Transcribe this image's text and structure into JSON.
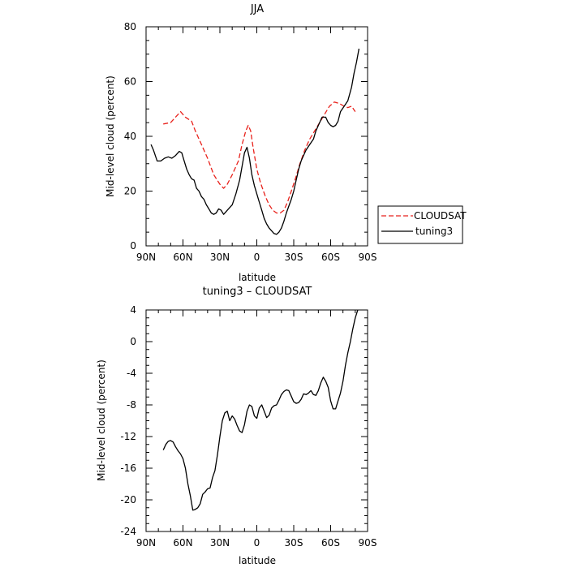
{
  "chart_data": [
    {
      "type": "line",
      "title": "JJA",
      "xlabel": "latitude",
      "ylabel": "Mid-level cloud (percent)",
      "xlim": [
        90,
        -90
      ],
      "ylim": [
        0,
        80
      ],
      "x_ticks": [
        90,
        60,
        30,
        0,
        -30,
        -60,
        -90
      ],
      "x_tick_labels": [
        "90N",
        "60N",
        "30N",
        "0",
        "30S",
        "60S",
        "90S"
      ],
      "y_ticks": [
        0,
        20,
        40,
        60,
        80
      ],
      "y_tick_labels": [
        "0",
        "20",
        "40",
        "60",
        "80"
      ],
      "legend_position": "right",
      "series": [
        {
          "name": "CLOUDSAT",
          "color": "#e8221c",
          "dash": "dashed",
          "points": [
            [
              76,
              44.5
            ],
            [
              70,
              45
            ],
            [
              65,
              47.5
            ],
            [
              62,
              49
            ],
            [
              58,
              47
            ],
            [
              53,
              45.5
            ],
            [
              50,
              42
            ],
            [
              45,
              37
            ],
            [
              40,
              32
            ],
            [
              35,
              26
            ],
            [
              30,
              22.5
            ],
            [
              27,
              21
            ],
            [
              24,
              22.5
            ],
            [
              20,
              26
            ],
            [
              15,
              31
            ],
            [
              12,
              37
            ],
            [
              9,
              42
            ],
            [
              7,
              44
            ],
            [
              5,
              42
            ],
            [
              3,
              36
            ],
            [
              0,
              28
            ],
            [
              -3,
              23
            ],
            [
              -7,
              18
            ],
            [
              -10,
              15
            ],
            [
              -13,
              13
            ],
            [
              -16,
              12
            ],
            [
              -19,
              12
            ],
            [
              -22,
              13
            ],
            [
              -25,
              16
            ],
            [
              -28,
              20
            ],
            [
              -31,
              24
            ],
            [
              -35,
              30
            ],
            [
              -39,
              35
            ],
            [
              -43,
              39
            ],
            [
              -47,
              42
            ],
            [
              -51,
              45
            ],
            [
              -55,
              48
            ],
            [
              -59,
              51
            ],
            [
              -63,
              52.5
            ],
            [
              -67,
              52
            ],
            [
              -71,
              51
            ],
            [
              -74,
              50.5
            ],
            [
              -77,
              51
            ],
            [
              -80,
              49
            ]
          ]
        },
        {
          "name": "tuning3",
          "color": "#000000",
          "dash": "solid",
          "points": [
            [
              86,
              37
            ],
            [
              84,
              35
            ],
            [
              81,
              31
            ],
            [
              78,
              31
            ],
            [
              75,
              32
            ],
            [
              72,
              32.5
            ],
            [
              69,
              32
            ],
            [
              66,
              33
            ],
            [
              63,
              34.5
            ],
            [
              61,
              34
            ],
            [
              59,
              31
            ],
            [
              57,
              28
            ],
            [
              55,
              26
            ],
            [
              53,
              24.5
            ],
            [
              51,
              24
            ],
            [
              49,
              21
            ],
            [
              47,
              20
            ],
            [
              45,
              18
            ],
            [
              43,
              17
            ],
            [
              41,
              15
            ],
            [
              39,
              13.5
            ],
            [
              37,
              12
            ],
            [
              35,
              11.5
            ],
            [
              33,
              12
            ],
            [
              31,
              13.5
            ],
            [
              29,
              13
            ],
            [
              27,
              11.5
            ],
            [
              25,
              12.5
            ],
            [
              23,
              13.5
            ],
            [
              20,
              15
            ],
            [
              17,
              19
            ],
            [
              14,
              24
            ],
            [
              12,
              29
            ],
            [
              10,
              34
            ],
            [
              8,
              36
            ],
            [
              6,
              32
            ],
            [
              4,
              26
            ],
            [
              2,
              22
            ],
            [
              0,
              19
            ],
            [
              -2,
              16
            ],
            [
              -4,
              13
            ],
            [
              -6,
              10
            ],
            [
              -8,
              8
            ],
            [
              -10,
              6.5
            ],
            [
              -12,
              5.5
            ],
            [
              -14,
              4.5
            ],
            [
              -16,
              4.2
            ],
            [
              -18,
              5
            ],
            [
              -20,
              6.5
            ],
            [
              -22,
              9
            ],
            [
              -24,
              12
            ],
            [
              -26,
              14.5
            ],
            [
              -28,
              17
            ],
            [
              -30,
              20
            ],
            [
              -32,
              24
            ],
            [
              -34,
              28
            ],
            [
              -36,
              31
            ],
            [
              -38,
              33
            ],
            [
              -40,
              35
            ],
            [
              -43,
              37
            ],
            [
              -46,
              39
            ],
            [
              -48,
              42
            ],
            [
              -51,
              45
            ],
            [
              -53,
              47
            ],
            [
              -56,
              47
            ],
            [
              -58,
              45
            ],
            [
              -60,
              44
            ],
            [
              -62,
              43.5
            ],
            [
              -64,
              44
            ],
            [
              -66,
              45.5
            ],
            [
              -68,
              49
            ],
            [
              -71,
              51
            ],
            [
              -74,
              53
            ],
            [
              -77,
              58
            ],
            [
              -79,
              63
            ],
            [
              -81,
              67
            ],
            [
              -83,
              72
            ]
          ]
        }
      ]
    },
    {
      "type": "line",
      "title": "tuning3 – CLOUDSAT",
      "xlabel": "latitude",
      "ylabel": "Mid-level cloud (percent)",
      "xlim": [
        90,
        -90
      ],
      "ylim": [
        -24,
        4
      ],
      "x_ticks": [
        90,
        60,
        30,
        0,
        -30,
        -60,
        -90
      ],
      "x_tick_labels": [
        "90N",
        "60N",
        "30N",
        "0",
        "30S",
        "60S",
        "90S"
      ],
      "y_ticks": [
        -24,
        -20,
        -16,
        -12,
        -8,
        -4,
        0,
        4
      ],
      "y_tick_labels": [
        "-24",
        "-20",
        "-16",
        "-12",
        "-8",
        "-4",
        "0",
        "4"
      ],
      "series": [
        {
          "color": "#000000",
          "dash": "solid",
          "points": [
            [
              76,
              -13.7
            ],
            [
              74,
              -13
            ],
            [
              72,
              -12.6
            ],
            [
              70,
              -12.5
            ],
            [
              68,
              -12.7
            ],
            [
              66,
              -13.3
            ],
            [
              64,
              -13.8
            ],
            [
              62,
              -14.2
            ],
            [
              60,
              -14.8
            ],
            [
              58,
              -16
            ],
            [
              56,
              -18
            ],
            [
              54,
              -19.5
            ],
            [
              52,
              -21.3
            ],
            [
              50,
              -21.2
            ],
            [
              48,
              -21
            ],
            [
              46,
              -20.5
            ],
            [
              44,
              -19.3
            ],
            [
              42,
              -19
            ],
            [
              40,
              -18.6
            ],
            [
              38,
              -18.5
            ],
            [
              36,
              -17.2
            ],
            [
              34,
              -16.3
            ],
            [
              32,
              -14.3
            ],
            [
              30,
              -12
            ],
            [
              28,
              -10
            ],
            [
              26,
              -9
            ],
            [
              24,
              -8.8
            ],
            [
              22,
              -10
            ],
            [
              20,
              -9.4
            ],
            [
              18,
              -9.8
            ],
            [
              16,
              -10.6
            ],
            [
              14,
              -11.3
            ],
            [
              12,
              -11.5
            ],
            [
              10,
              -10.5
            ],
            [
              8,
              -8.8
            ],
            [
              6,
              -8
            ],
            [
              4,
              -8.2
            ],
            [
              2,
              -9.4
            ],
            [
              0,
              -9.7
            ],
            [
              -2,
              -8.4
            ],
            [
              -4,
              -8
            ],
            [
              -6,
              -8.8
            ],
            [
              -8,
              -9.6
            ],
            [
              -10,
              -9.3
            ],
            [
              -12,
              -8.4
            ],
            [
              -14,
              -8.1
            ],
            [
              -16,
              -8
            ],
            [
              -18,
              -7.4
            ],
            [
              -20,
              -6.7
            ],
            [
              -22,
              -6.3
            ],
            [
              -24,
              -6.1
            ],
            [
              -26,
              -6.2
            ],
            [
              -28,
              -6.9
            ],
            [
              -30,
              -7.6
            ],
            [
              -32,
              -7.8
            ],
            [
              -34,
              -7.7
            ],
            [
              -36,
              -7.3
            ],
            [
              -38,
              -6.6
            ],
            [
              -40,
              -6.7
            ],
            [
              -42,
              -6.5
            ],
            [
              -44,
              -6.2
            ],
            [
              -46,
              -6.7
            ],
            [
              -48,
              -6.8
            ],
            [
              -50,
              -6.2
            ],
            [
              -52,
              -5.2
            ],
            [
              -54,
              -4.5
            ],
            [
              -56,
              -5
            ],
            [
              -58,
              -5.8
            ],
            [
              -60,
              -7.5
            ],
            [
              -62,
              -8.5
            ],
            [
              -64,
              -8.5
            ],
            [
              -66,
              -7.5
            ],
            [
              -68,
              -6.5
            ],
            [
              -70,
              -5
            ],
            [
              -72,
              -3
            ],
            [
              -74,
              -1.4
            ],
            [
              -76,
              0
            ],
            [
              -78,
              1.6
            ],
            [
              -80,
              3
            ],
            [
              -82,
              4
            ]
          ]
        }
      ]
    }
  ]
}
